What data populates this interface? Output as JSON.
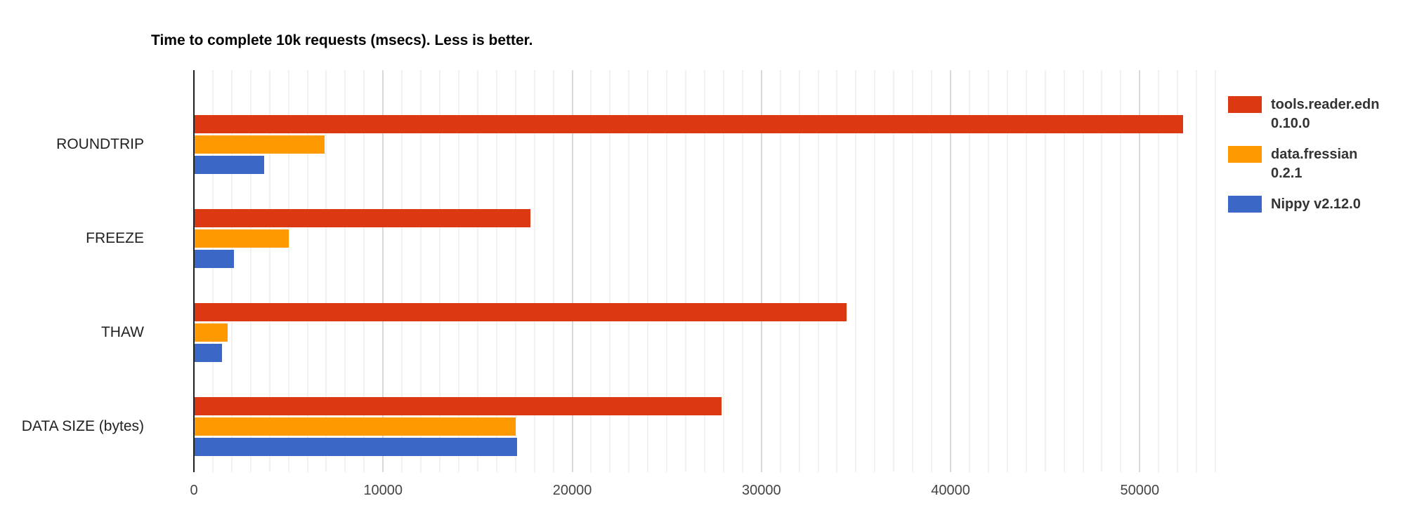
{
  "title": "Time to complete 10k requests (msecs). Less is better.",
  "colors": {
    "series_red": "#dc3912",
    "series_orange": "#ff9900",
    "series_blue": "#3b68c6",
    "axis_line": "#212121",
    "gridline_minor": "#f1f1f1",
    "gridline_major": "#d9d9d9"
  },
  "legend": {
    "entries": [
      {
        "id": "tools-reader-edn",
        "label_line1": "tools.reader.edn",
        "label_line2": "0.10.0",
        "color": "#dc3912"
      },
      {
        "id": "data-fressian",
        "label_line1": "data.fressian",
        "label_line2": "0.2.1",
        "color": "#ff9900"
      },
      {
        "id": "nippy",
        "label_line1": "Nippy v2.12.0",
        "label_line2": "",
        "color": "#3b68c6"
      }
    ]
  },
  "x_axis": {
    "tick_labels": [
      "0",
      "10000",
      "20000",
      "30000",
      "40000",
      "50000"
    ],
    "tick_values": [
      0,
      10000,
      20000,
      30000,
      40000,
      50000
    ]
  },
  "chart_data": {
    "type": "bar",
    "orientation": "horizontal",
    "title": "Time to complete 10k requests (msecs). Less is better.",
    "xlabel": "",
    "ylabel": "",
    "categories": [
      "ROUNDTRIP",
      "FREEZE",
      "THAW",
      "DATA SIZE (bytes)"
    ],
    "series": [
      {
        "name": "tools.reader.edn 0.10.0",
        "color": "#dc3912",
        "values": [
          52300,
          17800,
          34500,
          27900
        ]
      },
      {
        "name": "data.fressian 0.2.1",
        "color": "#ff9900",
        "values": [
          6900,
          5000,
          1800,
          17000
        ]
      },
      {
        "name": "Nippy v2.12.0",
        "color": "#3b68c6",
        "values": [
          3700,
          2100,
          1500,
          17100
        ]
      }
    ],
    "xlim": [
      0,
      54000
    ],
    "grid": true,
    "minor_grid_step": 1000,
    "major_grid_step": 10000,
    "legend_position": "right"
  }
}
